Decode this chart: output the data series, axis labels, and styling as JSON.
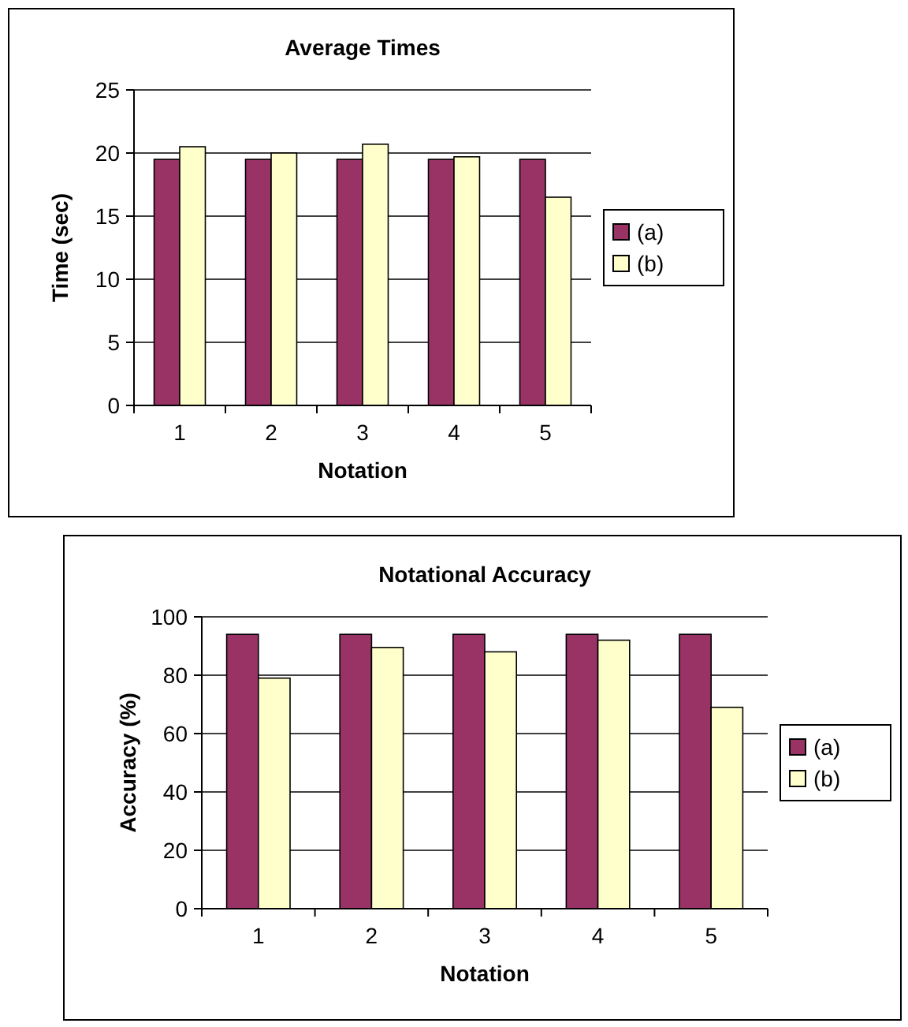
{
  "chart_data": [
    {
      "type": "bar",
      "title": "Average Times",
      "xlabel": "Notation",
      "ylabel": "Time (sec)",
      "categories": [
        "1",
        "2",
        "3",
        "4",
        "5"
      ],
      "series": [
        {
          "name": "(a)",
          "color": "#993366",
          "values": [
            19.5,
            19.5,
            19.5,
            19.5,
            19.5
          ]
        },
        {
          "name": "(b)",
          "color": "#ffffcc",
          "values": [
            20.5,
            20,
            20.7,
            19.7,
            16.5
          ]
        }
      ],
      "ylim": [
        0,
        25
      ],
      "yticks": [
        0,
        5,
        10,
        15,
        20,
        25
      ],
      "grid": "y",
      "legend": "right"
    },
    {
      "type": "bar",
      "title": "Notational Accuracy",
      "xlabel": "Notation",
      "ylabel": "Accuracy (%)",
      "categories": [
        "1",
        "2",
        "3",
        "4",
        "5"
      ],
      "series": [
        {
          "name": "(a)",
          "color": "#993366",
          "values": [
            94,
            94,
            94,
            94,
            94
          ]
        },
        {
          "name": "(b)",
          "color": "#ffffcc",
          "values": [
            79,
            89.5,
            88,
            92,
            69
          ]
        }
      ],
      "ylim": [
        0,
        100
      ],
      "yticks": [
        0,
        20,
        40,
        60,
        80,
        100
      ],
      "grid": "y",
      "legend": "right"
    }
  ]
}
